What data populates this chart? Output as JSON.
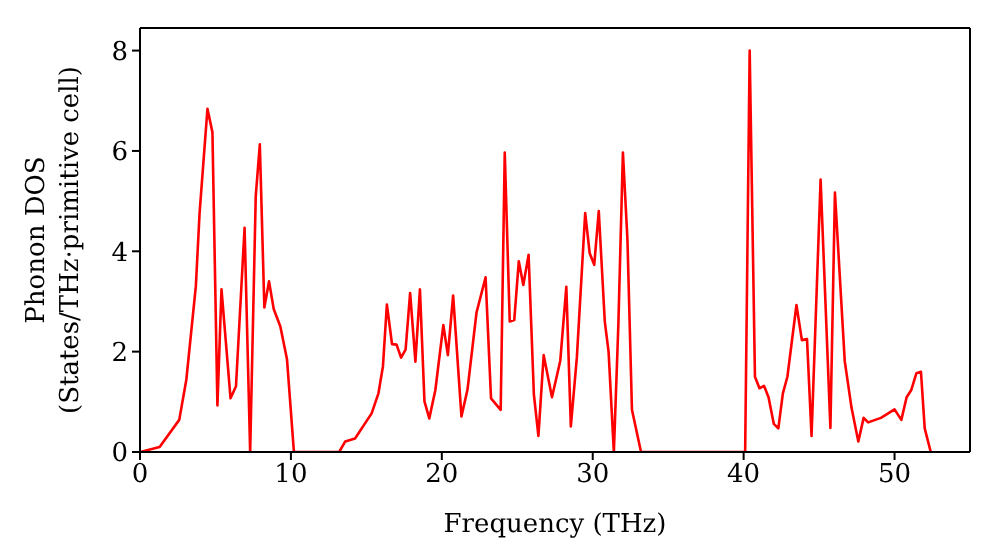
{
  "chart_data": {
    "type": "line",
    "xlabel": "Frequency (THz)",
    "ylabel": "Phonon DOS\n(States/THz·primitive cell)",
    "x": [
      0,
      1.3,
      2.6,
      3.07,
      3.7,
      3.95,
      4.47,
      4.8,
      5.13,
      5.4,
      6.0,
      6.36,
      6.93,
      7.3,
      7.67,
      7.94,
      8.24,
      8.55,
      8.86,
      9.3,
      9.74,
      10.2,
      13.2,
      13.6,
      14.25,
      15.35,
      15.8,
      16.1,
      16.36,
      16.7,
      17.0,
      17.3,
      17.6,
      17.9,
      18.25,
      18.55,
      18.85,
      19.17,
      19.57,
      20.1,
      20.4,
      20.75,
      21.3,
      21.7,
      22.3,
      22.9,
      23.26,
      23.9,
      24.17,
      24.5,
      24.8,
      25.1,
      25.4,
      25.75,
      26.1,
      26.4,
      26.75,
      27.3,
      27.85,
      28.25,
      28.55,
      28.95,
      29.5,
      29.8,
      30.1,
      30.4,
      30.8,
      31.05,
      31.4,
      31.7,
      32.0,
      32.3,
      32.6,
      33.2,
      40.1,
      40.4,
      40.75,
      41.05,
      41.35,
      41.65,
      42.0,
      42.3,
      42.6,
      42.9,
      43.5,
      43.86,
      44.2,
      44.5,
      45.1,
      45.75,
      46.05,
      46.7,
      47.15,
      47.6,
      47.95,
      48.25,
      49.1,
      50.0,
      50.45,
      50.8,
      51.1,
      51.45,
      51.75,
      52.0,
      52.4
    ],
    "values": [
      0,
      0.1,
      0.64,
      1.44,
      3.3,
      4.77,
      6.84,
      6.37,
      0.93,
      3.24,
      1.07,
      1.31,
      4.47,
      0,
      5.1,
      6.13,
      2.88,
      3.4,
      2.85,
      2.5,
      1.85,
      0,
      0,
      0.21,
      0.27,
      0.77,
      1.17,
      1.71,
      2.94,
      2.15,
      2.14,
      1.88,
      2.04,
      3.17,
      1.8,
      3.24,
      1.01,
      0.67,
      1.23,
      2.53,
      1.93,
      3.12,
      0.71,
      1.24,
      2.78,
      3.48,
      1.07,
      0.84,
      5.97,
      2.6,
      2.63,
      3.8,
      3.33,
      3.93,
      1.15,
      0.32,
      1.93,
      1.09,
      1.82,
      3.29,
      0.51,
      1.89,
      4.76,
      3.96,
      3.73,
      4.8,
      2.6,
      2.0,
      0,
      2.55,
      5.97,
      4.24,
      0.84,
      0,
      0,
      8.0,
      1.5,
      1.27,
      1.32,
      1.09,
      0.56,
      0.47,
      1.17,
      1.5,
      2.93,
      2.23,
      2.25,
      0.32,
      5.43,
      0.48,
      5.17,
      1.81,
      0.88,
      0.21,
      0.68,
      0.59,
      0.68,
      0.85,
      0.64,
      1.09,
      1.23,
      1.57,
      1.6,
      0.47,
      0
    ],
    "color": "#ff0000",
    "xlim": [
      0,
      55
    ],
    "xticks": [
      0,
      10,
      20,
      30,
      40,
      50
    ],
    "ylim": [
      0,
      8.45
    ],
    "yticks": [
      0,
      2,
      4,
      6,
      8
    ]
  }
}
